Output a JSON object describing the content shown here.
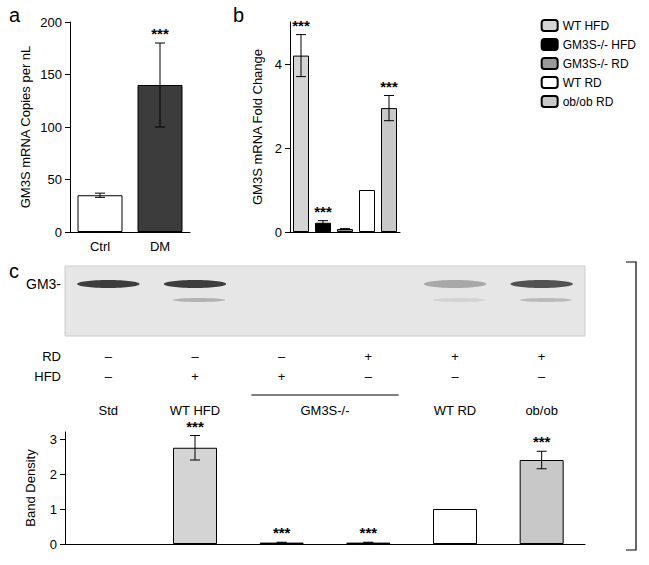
{
  "chart_data": [
    {
      "title": "a",
      "type": "bar",
      "categories": [
        "Ctrl",
        "DM"
      ],
      "values": [
        35,
        140
      ],
      "errors": [
        2,
        40
      ],
      "colors": [
        "#ffffff",
        "#3c3c3c"
      ],
      "annotations": [
        null,
        "***"
      ],
      "y_label": "GM3S mRNA Copies per nL",
      "ylim": [
        0,
        200
      ],
      "yticks": [
        0,
        50,
        100,
        150,
        200
      ],
      "grid": false
    },
    {
      "title": "b",
      "type": "bar",
      "categories": [
        null,
        null,
        null,
        null,
        null
      ],
      "series": [
        {
          "name": "WT HFD",
          "color": "#d4d4d4",
          "values": [
            4.2,
            null,
            null,
            null,
            null
          ],
          "errors": [
            0.5,
            null,
            null,
            null,
            null
          ],
          "annotations": [
            "***",
            null,
            null,
            null,
            null
          ]
        },
        {
          "name": "GM3S-/- HFD",
          "color": "#000000",
          "values": [
            null,
            0.22,
            null,
            null,
            null
          ],
          "errors": [
            null,
            0.05,
            null,
            null,
            null
          ],
          "annotations": [
            null,
            "***",
            null,
            null,
            null
          ]
        },
        {
          "name": "GM3S-/- RD",
          "color": "#9a9a9a",
          "values": [
            null,
            null,
            0.07,
            null,
            null
          ],
          "errors": [
            null,
            null,
            0.01,
            null,
            null
          ],
          "annotations": [
            null,
            null,
            null,
            null,
            null
          ]
        },
        {
          "name": "WT RD",
          "color": "#ffffff",
          "values": [
            null,
            null,
            null,
            1.0,
            null
          ],
          "errors": [
            null,
            null,
            null,
            null,
            null
          ],
          "annotations": [
            null,
            null,
            null,
            null,
            null
          ]
        },
        {
          "name": "ob/ob RD",
          "color": "#c8c8c8",
          "values": [
            null,
            null,
            null,
            null,
            2.95
          ],
          "errors": [
            null,
            null,
            null,
            null,
            0.3
          ],
          "annotations": [
            null,
            null,
            null,
            null,
            "***"
          ]
        }
      ],
      "y_label": "GM3S mRNA Fold Change",
      "ylim": [
        0,
        5
      ],
      "yticks": [
        0,
        2,
        4
      ],
      "grid": false,
      "legend": "right",
      "tick_labels": "y"
    },
    {
      "title": "c",
      "type": "bar",
      "blot_label": "GM3-",
      "categories": [
        "Std",
        "WT HFD",
        "GM3S-/-",
        null,
        "WT RD",
        "ob/ob"
      ],
      "rows": [
        {
          "label": "RD",
          "marks": [
            "–",
            "–",
            "–",
            "+",
            "+",
            "+"
          ]
        },
        {
          "label": "HFD",
          "marks": [
            "–",
            "+",
            "+",
            "–",
            "–",
            "–"
          ]
        }
      ],
      "values": [
        null,
        2.75,
        0.04,
        0.04,
        1.0,
        2.4
      ],
      "errors": [
        null,
        0.35,
        0.01,
        0.01,
        null,
        0.25
      ],
      "colors": [
        "#ffffff",
        "#d4d4d4",
        "#000000",
        "#000000",
        "#ffffff",
        "#c8c8c8"
      ],
      "annotations": [
        null,
        "***",
        "***",
        "***",
        null,
        "***"
      ],
      "y_label": "Band Density",
      "ylim": [
        0,
        3.2
      ],
      "yticks": [
        0,
        1,
        2,
        3
      ],
      "grid": false,
      "tick_labels": "y"
    }
  ]
}
